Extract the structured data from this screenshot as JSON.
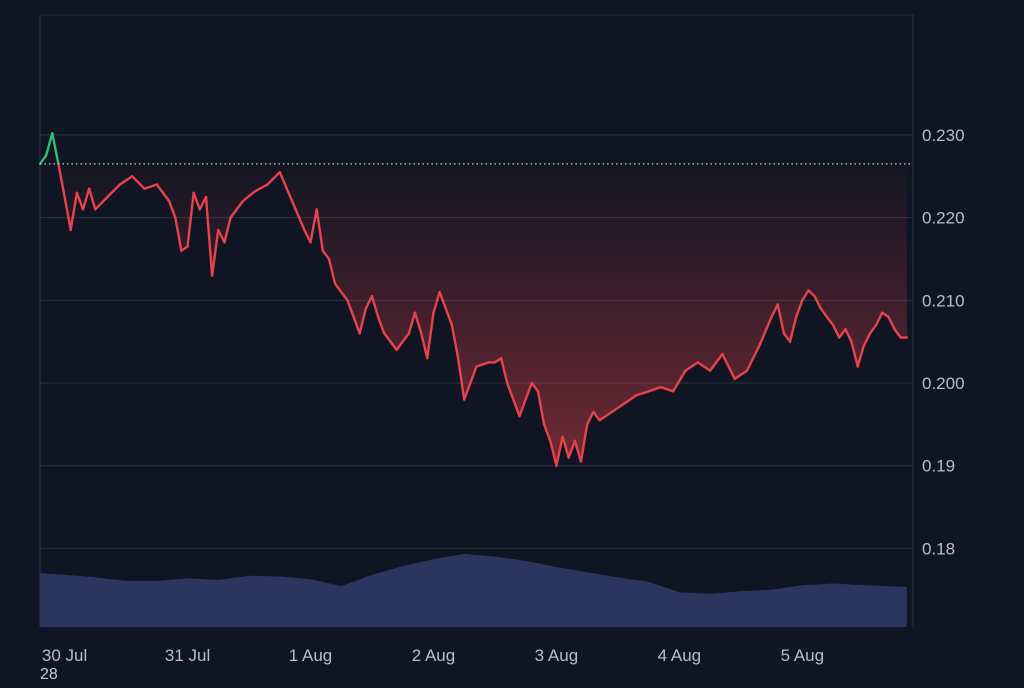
{
  "colors": {
    "background": "#0f1522",
    "grid": "#2a3140",
    "down_line": "#e8424b",
    "up_line": "#2fbf71",
    "baseline": "#c8ccd4",
    "volume": "#2e3a64",
    "tick_text": "#b9bec9"
  },
  "corner_label": "28",
  "chart_data": {
    "type": "line",
    "x_unit": "date",
    "x_ticks": [
      "30 Jul",
      "31 Jul",
      "1 Aug",
      "2 Aug",
      "3 Aug",
      "4 Aug",
      "5 Aug"
    ],
    "y_ticks": [
      "0.230",
      "0.220",
      "0.210",
      "0.200",
      "0.19",
      "0.18"
    ],
    "ylim": [
      0.1705,
      0.2445
    ],
    "xlim": [
      -0.2,
      6.9
    ],
    "baseline_price": 0.2265,
    "grid": "horizontal",
    "series": [
      {
        "x": [
          -0.2,
          -0.15,
          -0.1,
          -0.05,
          0,
          0.05,
          0.1,
          0.15,
          0.2,
          0.25,
          0.35,
          0.45,
          0.55,
          0.65,
          0.75,
          0.85,
          0.9,
          0.95,
          1.0,
          1.05,
          1.1,
          1.15,
          1.2,
          1.25,
          1.3,
          1.35,
          1.45,
          1.55,
          1.65,
          1.75,
          1.85,
          1.95,
          2.0,
          2.05,
          2.1,
          2.15,
          2.2,
          2.3,
          2.4,
          2.45,
          2.5,
          2.55,
          2.6,
          2.7,
          2.8,
          2.85,
          2.9,
          2.95,
          3.0,
          3.05,
          3.1,
          3.15,
          3.2,
          3.25,
          3.35,
          3.45,
          3.5,
          3.55,
          3.6,
          3.7,
          3.8,
          3.85,
          3.9,
          3.95,
          4.0,
          4.05,
          4.1,
          4.15,
          4.2,
          4.25,
          4.3,
          4.35,
          4.45,
          4.55,
          4.65,
          4.75,
          4.85,
          4.95,
          5.05,
          5.15,
          5.25,
          5.35,
          5.45,
          5.55,
          5.65,
          5.75,
          5.8,
          5.85,
          5.9,
          5.95,
          6.0,
          6.05,
          6.1,
          6.15,
          6.2,
          6.25,
          6.3,
          6.35,
          6.4,
          6.45,
          6.5,
          6.55,
          6.6,
          6.65,
          6.7,
          6.75,
          6.8,
          6.85
        ],
        "y": [
          0.2265,
          0.2275,
          0.2302,
          0.2265,
          0.2225,
          0.2185,
          0.223,
          0.221,
          0.2235,
          0.221,
          0.2225,
          0.224,
          0.225,
          0.2235,
          0.224,
          0.222,
          0.22,
          0.216,
          0.2165,
          0.223,
          0.221,
          0.2225,
          0.213,
          0.2185,
          0.217,
          0.22,
          0.222,
          0.2232,
          0.224,
          0.2255,
          0.222,
          0.2185,
          0.217,
          0.221,
          0.216,
          0.215,
          0.212,
          0.21,
          0.206,
          0.209,
          0.2105,
          0.208,
          0.206,
          0.204,
          0.206,
          0.2085,
          0.206,
          0.203,
          0.2085,
          0.211,
          0.209,
          0.207,
          0.203,
          0.198,
          0.202,
          0.2025,
          0.2025,
          0.203,
          0.2,
          0.196,
          0.2,
          0.199,
          0.195,
          0.193,
          0.19,
          0.1935,
          0.191,
          0.193,
          0.1905,
          0.195,
          0.1965,
          0.1955,
          0.1965,
          0.1975,
          0.1985,
          0.199,
          0.1995,
          0.199,
          0.2015,
          0.2025,
          0.2015,
          0.2035,
          0.2005,
          0.2015,
          0.2045,
          0.208,
          0.2095,
          0.206,
          0.205,
          0.208,
          0.21,
          0.2112,
          0.2105,
          0.209,
          0.208,
          0.207,
          0.2055,
          0.2065,
          0.205,
          0.202,
          0.2045,
          0.206,
          0.207,
          0.2085,
          0.208,
          0.2065,
          0.2055,
          0.2055
        ]
      }
    ],
    "volume": {
      "x": [
        -0.2,
        0,
        0.25,
        0.5,
        0.75,
        1.0,
        1.25,
        1.5,
        1.75,
        2.0,
        2.25,
        2.5,
        2.75,
        3.0,
        3.25,
        3.5,
        3.75,
        4.0,
        4.25,
        4.5,
        4.75,
        5.0,
        5.25,
        5.5,
        5.75,
        6.0,
        6.25,
        6.5,
        6.85
      ],
      "values": [
        0.62,
        0.6,
        0.57,
        0.53,
        0.53,
        0.56,
        0.54,
        0.59,
        0.58,
        0.55,
        0.47,
        0.6,
        0.7,
        0.78,
        0.84,
        0.81,
        0.76,
        0.69,
        0.63,
        0.57,
        0.52,
        0.4,
        0.38,
        0.41,
        0.43,
        0.48,
        0.5,
        0.48,
        0.46
      ]
    }
  }
}
